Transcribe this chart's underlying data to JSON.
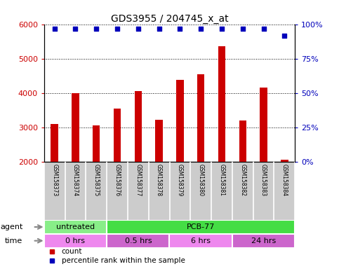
{
  "title": "GDS3955 / 204745_x_at",
  "samples": [
    "GSM158373",
    "GSM158374",
    "GSM158375",
    "GSM158376",
    "GSM158377",
    "GSM158378",
    "GSM158379",
    "GSM158380",
    "GSM158381",
    "GSM158382",
    "GSM158383",
    "GSM158384"
  ],
  "counts": [
    3100,
    4000,
    3070,
    3560,
    4060,
    3220,
    4380,
    4540,
    5360,
    3200,
    4160,
    2060
  ],
  "percentile_ranks": [
    100,
    100,
    100,
    100,
    100,
    100,
    100,
    100,
    100,
    100,
    100,
    95
  ],
  "ylim": [
    2000,
    6000
  ],
  "yticks": [
    2000,
    3000,
    4000,
    5000,
    6000
  ],
  "y2ticks": [
    0,
    25,
    50,
    75,
    100
  ],
  "bar_color": "#cc0000",
  "dot_color": "#0000bb",
  "agent_groups": [
    {
      "label": "untreated",
      "start": 0,
      "end": 3,
      "color": "#88ee88"
    },
    {
      "label": "PCB-77",
      "start": 3,
      "end": 12,
      "color": "#44dd44"
    }
  ],
  "time_groups": [
    {
      "label": "0 hrs",
      "start": 0,
      "end": 3,
      "color": "#ee88ee"
    },
    {
      "label": "0.5 hrs",
      "start": 3,
      "end": 6,
      "color": "#dd66dd"
    },
    {
      "label": "6 hrs",
      "start": 6,
      "end": 9,
      "color": "#ee88ee"
    },
    {
      "label": "24 hrs",
      "start": 9,
      "end": 12,
      "color": "#dd66dd"
    }
  ],
  "legend_items": [
    {
      "label": "count",
      "color": "#cc0000"
    },
    {
      "label": "percentile rank within the sample",
      "color": "#0000bb"
    }
  ],
  "bg_color": "#ffffff",
  "bar_width": 0.35,
  "label_bg": "#cccccc"
}
